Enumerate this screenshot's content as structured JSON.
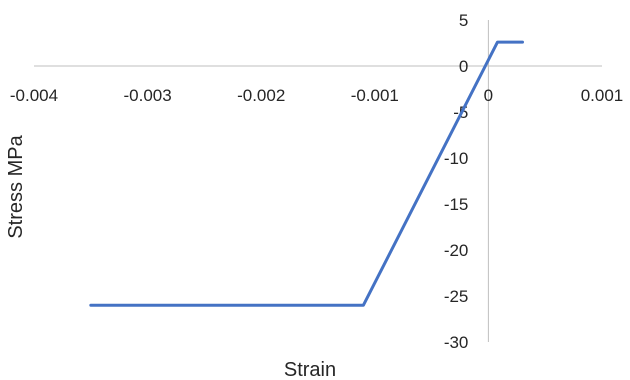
{
  "chart_data": {
    "type": "line",
    "title": "",
    "xlabel": "Strain",
    "ylabel": "Stress MPa",
    "xlim": [
      -0.004,
      0.001
    ],
    "ylim": [
      -30,
      5
    ],
    "x_ticks": [
      -0.004,
      -0.003,
      -0.002,
      -0.001,
      0,
      0.001
    ],
    "x_tick_labels": [
      "-0.004",
      "-0.003",
      "-0.002",
      "-0.001",
      "0",
      "0.001"
    ],
    "y_ticks": [
      5,
      0,
      -5,
      -10,
      -15,
      -20,
      -25,
      -30
    ],
    "y_tick_labels": [
      "5",
      "0",
      "-5",
      "-10",
      "-15",
      "-20",
      "-25",
      "-30"
    ],
    "grid": false,
    "legend": "none",
    "series": [
      {
        "color": "#4472C4",
        "x": [
          -0.0035,
          -0.0011,
          8e-05,
          0.0003
        ],
        "y": [
          -26,
          -26,
          2.6,
          2.6
        ]
      }
    ],
    "colors": {
      "axis": "#BFBFBF",
      "text": "#262626",
      "line": "#4472C4"
    }
  }
}
